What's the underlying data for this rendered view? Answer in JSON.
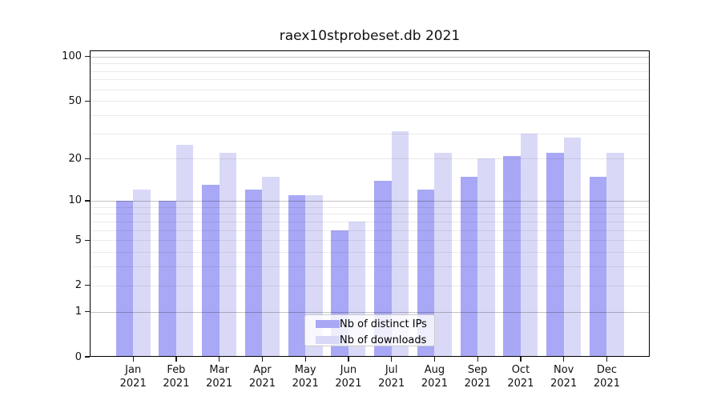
{
  "figure": {
    "background": "#ffffff",
    "text_color": "#111111"
  },
  "chart_data": {
    "type": "bar",
    "title": "raex10stprobeset.db 2021",
    "categories": [
      "Jan",
      "Feb",
      "Mar",
      "Apr",
      "May",
      "Jun",
      "Jul",
      "Aug",
      "Sep",
      "Oct",
      "Nov",
      "Dec"
    ],
    "category_year": "2021",
    "series": [
      {
        "name": "Nb of distinct IPs",
        "color": "#a8a8f6",
        "values": [
          10,
          10,
          13,
          12,
          11,
          6,
          14,
          12,
          15,
          21,
          22,
          15
        ]
      },
      {
        "name": "Nb of downloads",
        "color": "#d9d9f7",
        "values": [
          12,
          25,
          22,
          15,
          11,
          7,
          31,
          22,
          20,
          30,
          28,
          22
        ]
      }
    ],
    "xlabel": "",
    "ylabel": "",
    "yscale": "symlog",
    "ylim": [
      0,
      110
    ],
    "yticks": [
      0,
      1,
      2,
      5,
      10,
      20,
      50,
      100
    ],
    "gridlines_major": [
      1,
      10,
      100
    ],
    "gridlines_minor": [
      2,
      3,
      4,
      5,
      6,
      7,
      8,
      9,
      20,
      30,
      40,
      50,
      60,
      70,
      80,
      90
    ],
    "grid_major_color": "rgba(0,0,0,0.24)",
    "grid_minor_color": "rgba(0,0,0,0.08)",
    "grid": "on",
    "legend_position": "lower center",
    "legend_labels": [
      "Nb of distinct IPs",
      "Nb of downloads"
    ]
  }
}
